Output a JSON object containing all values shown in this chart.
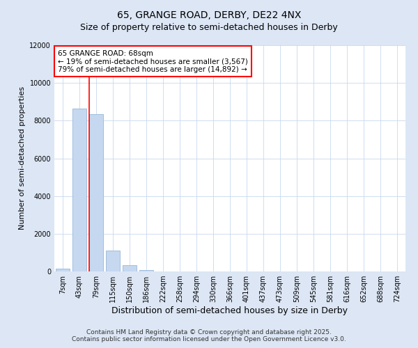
{
  "title": "65, GRANGE ROAD, DERBY, DE22 4NX",
  "subtitle": "Size of property relative to semi-detached houses in Derby",
  "xlabel": "Distribution of semi-detached houses by size in Derby",
  "ylabel": "Number of semi-detached properties",
  "bar_labels": [
    "7sqm",
    "43sqm",
    "79sqm",
    "115sqm",
    "150sqm",
    "186sqm",
    "222sqm",
    "258sqm",
    "294sqm",
    "330sqm",
    "366sqm",
    "401sqm",
    "437sqm",
    "473sqm",
    "509sqm",
    "545sqm",
    "581sqm",
    "616sqm",
    "652sqm",
    "688sqm",
    "724sqm"
  ],
  "bar_values": [
    150,
    8650,
    8350,
    1100,
    350,
    60,
    15,
    5,
    2,
    1,
    1,
    0,
    0,
    0,
    0,
    0,
    0,
    0,
    0,
    0,
    0
  ],
  "bar_color": "#c5d8f0",
  "bar_edgecolor": "#a0bede",
  "vline_color": "red",
  "annotation_text": "65 GRANGE ROAD: 68sqm\n← 19% of semi-detached houses are smaller (3,567)\n79% of semi-detached houses are larger (14,892) →",
  "annotation_box_color": "white",
  "annotation_box_edgecolor": "red",
  "ylim": [
    0,
    12000
  ],
  "yticks": [
    0,
    2000,
    4000,
    6000,
    8000,
    10000,
    12000
  ],
  "footer_line1": "Contains HM Land Registry data © Crown copyright and database right 2025.",
  "footer_line2": "Contains public sector information licensed under the Open Government Licence v3.0.",
  "background_color": "#dce6f5",
  "plot_bg_color": "white",
  "grid_color": "#c8d8ee",
  "title_fontsize": 10,
  "subtitle_fontsize": 9,
  "tick_fontsize": 7,
  "ylabel_fontsize": 8,
  "xlabel_fontsize": 9,
  "footer_fontsize": 6.5
}
